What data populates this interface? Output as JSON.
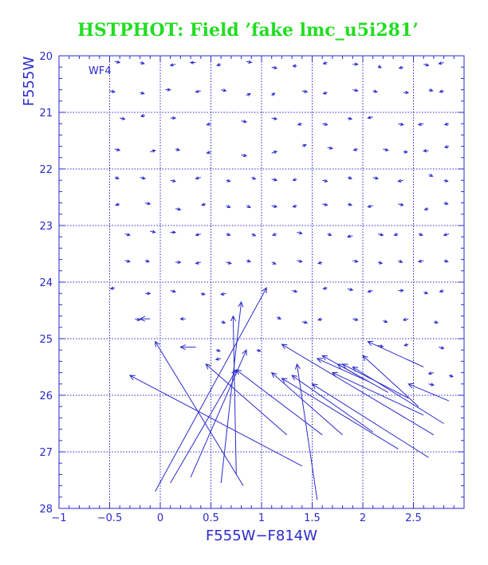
{
  "chart_data": {
    "type": "scatter",
    "title": "HSTPHOT: Field ’fake lmc_u5i281’",
    "panel_label": "WF4",
    "xlabel": "F555W−F814W",
    "ylabel": "F555W",
    "xlim": [
      -1,
      3.0
    ],
    "ylim": [
      28,
      20
    ],
    "x_ticks": [
      -1,
      -0.5,
      0,
      0.5,
      1,
      1.5,
      2,
      2.5
    ],
    "x_tick_labels": [
      "−1",
      "−0.5",
      "0",
      "0.5",
      "1",
      "1.5",
      "2",
      "2.5"
    ],
    "y_ticks": [
      20,
      21,
      22,
      23,
      24,
      25,
      26,
      27,
      28
    ],
    "y_tick_labels": [
      "20",
      "21",
      "22",
      "23",
      "24",
      "25",
      "26",
      "27",
      "28"
    ],
    "grid": true,
    "colors": {
      "title": "#22dd22",
      "axes": "#2a2acc",
      "data": "#2a2acc"
    },
    "short_vectors": [
      {
        "x": -0.45,
        "y": 20.1,
        "dx": 0.05,
        "dy": 0.02
      },
      {
        "x": -0.2,
        "y": 20.12,
        "dx": 0.04,
        "dy": 0.02
      },
      {
        "x": 0.15,
        "y": 20.15,
        "dx": -0.05,
        "dy": 0.02
      },
      {
        "x": 0.35,
        "y": 20.12,
        "dx": -0.05,
        "dy": 0.0
      },
      {
        "x": 0.6,
        "y": 20.15,
        "dx": -0.04,
        "dy": 0.02
      },
      {
        "x": 0.85,
        "y": 20.1,
        "dx": 0.05,
        "dy": 0.02
      },
      {
        "x": 1.1,
        "y": 20.2,
        "dx": 0.05,
        "dy": 0.02
      },
      {
        "x": 1.35,
        "y": 20.18,
        "dx": -0.04,
        "dy": 0.0
      },
      {
        "x": 1.65,
        "y": 20.12,
        "dx": -0.04,
        "dy": 0.02
      },
      {
        "x": 1.9,
        "y": 20.15,
        "dx": 0.05,
        "dy": 0.0
      },
      {
        "x": 2.15,
        "y": 20.18,
        "dx": 0.03,
        "dy": 0.03
      },
      {
        "x": 2.4,
        "y": 20.2,
        "dx": -0.04,
        "dy": 0.02
      },
      {
        "x": 2.6,
        "y": 20.15,
        "dx": 0.05,
        "dy": 0.02
      },
      {
        "x": 2.8,
        "y": 20.12,
        "dx": -0.05,
        "dy": 0.02
      },
      {
        "x": -0.5,
        "y": 20.62,
        "dx": 0.05,
        "dy": 0.02
      },
      {
        "x": -0.2,
        "y": 20.65,
        "dx": 0.04,
        "dy": 0.02
      },
      {
        "x": 0.05,
        "y": 20.6,
        "dx": 0.05,
        "dy": 0.0
      },
      {
        "x": 0.4,
        "y": 20.62,
        "dx": -0.05,
        "dy": 0.02
      },
      {
        "x": 0.6,
        "y": 20.6,
        "dx": 0.05,
        "dy": 0.02
      },
      {
        "x": 0.85,
        "y": 20.7,
        "dx": 0.04,
        "dy": -0.03
      },
      {
        "x": 1.1,
        "y": 20.7,
        "dx": 0.03,
        "dy": -0.04
      },
      {
        "x": 1.4,
        "y": 20.62,
        "dx": 0.05,
        "dy": 0.02
      },
      {
        "x": 1.65,
        "y": 20.65,
        "dx": -0.04,
        "dy": 0.02
      },
      {
        "x": 1.9,
        "y": 20.6,
        "dx": 0.05,
        "dy": 0.02
      },
      {
        "x": 2.1,
        "y": 20.62,
        "dx": 0.04,
        "dy": 0.02
      },
      {
        "x": 2.4,
        "y": 20.65,
        "dx": 0.05,
        "dy": 0.0
      },
      {
        "x": 2.65,
        "y": 20.6,
        "dx": 0.04,
        "dy": 0.02
      },
      {
        "x": 2.8,
        "y": 20.62,
        "dx": -0.04,
        "dy": 0.02
      },
      {
        "x": -0.4,
        "y": 21.1,
        "dx": 0.05,
        "dy": 0.02
      },
      {
        "x": -0.15,
        "y": 21.05,
        "dx": -0.04,
        "dy": 0.02
      },
      {
        "x": 0.1,
        "y": 21.1,
        "dx": 0.05,
        "dy": 0.0
      },
      {
        "x": 0.5,
        "y": 21.2,
        "dx": -0.04,
        "dy": 0.02
      },
      {
        "x": 0.8,
        "y": 21.15,
        "dx": 0.05,
        "dy": 0.02
      },
      {
        "x": 1.1,
        "y": 21.1,
        "dx": 0.05,
        "dy": 0.02
      },
      {
        "x": 1.4,
        "y": 21.2,
        "dx": -0.04,
        "dy": 0.02
      },
      {
        "x": 1.6,
        "y": 21.2,
        "dx": 0.05,
        "dy": 0.02
      },
      {
        "x": 1.85,
        "y": 21.1,
        "dx": 0.04,
        "dy": 0.02
      },
      {
        "x": 2.1,
        "y": 21.08,
        "dx": -0.05,
        "dy": 0.02
      },
      {
        "x": 2.35,
        "y": 21.2,
        "dx": 0.05,
        "dy": 0.02
      },
      {
        "x": 2.6,
        "y": 21.2,
        "dx": -0.05,
        "dy": 0.02
      },
      {
        "x": 2.85,
        "y": 21.2,
        "dx": -0.04,
        "dy": 0.02
      },
      {
        "x": -0.45,
        "y": 21.65,
        "dx": 0.05,
        "dy": 0.02
      },
      {
        "x": -0.1,
        "y": 21.7,
        "dx": 0.05,
        "dy": -0.03
      },
      {
        "x": 0.15,
        "y": 21.65,
        "dx": 0.04,
        "dy": 0.02
      },
      {
        "x": 0.5,
        "y": 21.7,
        "dx": -0.04,
        "dy": 0.02
      },
      {
        "x": 0.8,
        "y": 21.75,
        "dx": 0.05,
        "dy": 0.02
      },
      {
        "x": 1.1,
        "y": 21.72,
        "dx": 0.05,
        "dy": -0.03
      },
      {
        "x": 1.4,
        "y": 21.6,
        "dx": 0.04,
        "dy": -0.03
      },
      {
        "x": 1.65,
        "y": 21.62,
        "dx": 0.05,
        "dy": 0.02
      },
      {
        "x": 1.95,
        "y": 21.65,
        "dx": -0.04,
        "dy": 0.02
      },
      {
        "x": 2.2,
        "y": 21.65,
        "dx": 0.05,
        "dy": 0.02
      },
      {
        "x": 2.4,
        "y": 21.7,
        "dx": 0.04,
        "dy": 0.0
      },
      {
        "x": 2.65,
        "y": 21.68,
        "dx": -0.05,
        "dy": 0.0
      },
      {
        "x": 2.85,
        "y": 21.6,
        "dx": -0.04,
        "dy": 0.02
      },
      {
        "x": -0.45,
        "y": 22.15,
        "dx": 0.04,
        "dy": 0.02
      },
      {
        "x": -0.2,
        "y": 22.15,
        "dx": 0.05,
        "dy": 0.02
      },
      {
        "x": 0.1,
        "y": 22.2,
        "dx": 0.05,
        "dy": 0.02
      },
      {
        "x": 0.4,
        "y": 22.15,
        "dx": -0.05,
        "dy": 0.02
      },
      {
        "x": 0.65,
        "y": 22.2,
        "dx": 0.04,
        "dy": 0.02
      },
      {
        "x": 0.9,
        "y": 22.15,
        "dx": 0.04,
        "dy": 0.03
      },
      {
        "x": 1.1,
        "y": 22.18,
        "dx": 0.05,
        "dy": 0.02
      },
      {
        "x": 1.35,
        "y": 22.18,
        "dx": -0.04,
        "dy": 0.02
      },
      {
        "x": 1.6,
        "y": 22.2,
        "dx": 0.05,
        "dy": 0.02
      },
      {
        "x": 1.85,
        "y": 22.15,
        "dx": 0.04,
        "dy": 0.02
      },
      {
        "x": 2.1,
        "y": 22.15,
        "dx": 0.05,
        "dy": 0.02
      },
      {
        "x": 2.4,
        "y": 22.2,
        "dx": -0.05,
        "dy": 0.02
      },
      {
        "x": 2.65,
        "y": 22.1,
        "dx": 0.04,
        "dy": 0.03
      },
      {
        "x": 2.8,
        "y": 22.2,
        "dx": 0.04,
        "dy": 0.02
      },
      {
        "x": -0.4,
        "y": 22.62,
        "dx": -0.04,
        "dy": 0.02
      },
      {
        "x": -0.15,
        "y": 22.6,
        "dx": 0.05,
        "dy": 0.02
      },
      {
        "x": 0.15,
        "y": 22.7,
        "dx": 0.05,
        "dy": 0.02
      },
      {
        "x": 0.45,
        "y": 22.62,
        "dx": -0.04,
        "dy": 0.02
      },
      {
        "x": 0.65,
        "y": 22.65,
        "dx": 0.04,
        "dy": 0.03
      },
      {
        "x": 0.85,
        "y": 22.65,
        "dx": 0.04,
        "dy": 0.03
      },
      {
        "x": 1.1,
        "y": 22.65,
        "dx": 0.05,
        "dy": 0.02
      },
      {
        "x": 1.35,
        "y": 22.65,
        "dx": -0.04,
        "dy": 0.02
      },
      {
        "x": 1.6,
        "y": 22.62,
        "dx": 0.05,
        "dy": 0.02
      },
      {
        "x": 1.85,
        "y": 22.62,
        "dx": 0.04,
        "dy": 0.02
      },
      {
        "x": 2.1,
        "y": 22.65,
        "dx": -0.05,
        "dy": 0.02
      },
      {
        "x": 2.35,
        "y": 22.62,
        "dx": 0.05,
        "dy": 0.02
      },
      {
        "x": 2.65,
        "y": 22.7,
        "dx": -0.04,
        "dy": 0.02
      },
      {
        "x": 2.8,
        "y": 22.6,
        "dx": 0.04,
        "dy": 0.02
      },
      {
        "x": -0.35,
        "y": 23.15,
        "dx": 0.05,
        "dy": 0.02
      },
      {
        "x": -0.1,
        "y": 23.1,
        "dx": 0.05,
        "dy": 0.02
      },
      {
        "x": 0.1,
        "y": 23.12,
        "dx": 0.05,
        "dy": 0.0
      },
      {
        "x": 0.4,
        "y": 23.15,
        "dx": -0.05,
        "dy": 0.02
      },
      {
        "x": 0.65,
        "y": 23.15,
        "dx": 0.04,
        "dy": 0.02
      },
      {
        "x": 0.9,
        "y": 23.15,
        "dx": 0.04,
        "dy": 0.03
      },
      {
        "x": 1.15,
        "y": 23.15,
        "dx": -0.04,
        "dy": 0.02
      },
      {
        "x": 1.35,
        "y": 23.12,
        "dx": 0.05,
        "dy": 0.02
      },
      {
        "x": 1.65,
        "y": 23.15,
        "dx": 0.04,
        "dy": 0.02
      },
      {
        "x": 1.9,
        "y": 23.18,
        "dx": -0.05,
        "dy": 0.02
      },
      {
        "x": 2.15,
        "y": 23.15,
        "dx": 0.05,
        "dy": 0.02
      },
      {
        "x": 2.35,
        "y": 23.15,
        "dx": -0.04,
        "dy": 0.02
      },
      {
        "x": 2.55,
        "y": 23.15,
        "dx": 0.04,
        "dy": 0.02
      },
      {
        "x": 2.85,
        "y": 23.15,
        "dx": -0.05,
        "dy": 0.02
      },
      {
        "x": -0.35,
        "y": 23.62,
        "dx": 0.05,
        "dy": 0.02
      },
      {
        "x": -0.15,
        "y": 23.62,
        "dx": 0.04,
        "dy": 0.02
      },
      {
        "x": 0.15,
        "y": 23.65,
        "dx": 0.05,
        "dy": 0.0
      },
      {
        "x": 0.4,
        "y": 23.65,
        "dx": -0.05,
        "dy": 0.02
      },
      {
        "x": 0.65,
        "y": 23.65,
        "dx": 0.05,
        "dy": 0.02
      },
      {
        "x": 0.85,
        "y": 23.62,
        "dx": 0.04,
        "dy": 0.02
      },
      {
        "x": 1.1,
        "y": 23.65,
        "dx": 0.04,
        "dy": 0.03
      },
      {
        "x": 1.35,
        "y": 23.62,
        "dx": 0.05,
        "dy": 0.02
      },
      {
        "x": 1.6,
        "y": 23.65,
        "dx": -0.04,
        "dy": 0.02
      },
      {
        "x": 1.9,
        "y": 23.62,
        "dx": 0.05,
        "dy": 0.02
      },
      {
        "x": 2.15,
        "y": 23.65,
        "dx": 0.04,
        "dy": 0.02
      },
      {
        "x": 2.35,
        "y": 23.62,
        "dx": 0.04,
        "dy": 0.03
      },
      {
        "x": 2.6,
        "y": 23.62,
        "dx": -0.05,
        "dy": 0.02
      },
      {
        "x": 2.8,
        "y": 23.62,
        "dx": 0.04,
        "dy": 0.02
      },
      {
        "x": -0.45,
        "y": 24.1,
        "dx": -0.04,
        "dy": 0.02
      },
      {
        "x": -0.15,
        "y": 24.2,
        "dx": 0.05,
        "dy": 0.0
      },
      {
        "x": 0.1,
        "y": 24.15,
        "dx": 0.05,
        "dy": 0.02
      },
      {
        "x": 0.4,
        "y": 24.2,
        "dx": 0.04,
        "dy": 0.02
      },
      {
        "x": 0.65,
        "y": 24.2,
        "dx": -0.05,
        "dy": 0.02
      },
      {
        "x": 1.3,
        "y": 24.15,
        "dx": 0.05,
        "dy": 0.02
      },
      {
        "x": 1.65,
        "y": 24.1,
        "dx": -0.04,
        "dy": 0.02
      },
      {
        "x": 1.85,
        "y": 24.12,
        "dx": 0.05,
        "dy": 0.02
      },
      {
        "x": 2.1,
        "y": 24.15,
        "dx": -0.05,
        "dy": 0.02
      },
      {
        "x": 2.35,
        "y": 24.15,
        "dx": 0.05,
        "dy": 0.0
      },
      {
        "x": 2.6,
        "y": 24.18,
        "dx": 0.04,
        "dy": 0.02
      },
      {
        "x": 2.8,
        "y": 24.15,
        "dx": -0.04,
        "dy": 0.02
      },
      {
        "x": -0.25,
        "y": 24.65,
        "dx": 0.05,
        "dy": 0.02
      },
      {
        "x": 0.25,
        "y": 24.65,
        "dx": -0.05,
        "dy": 0.0
      },
      {
        "x": 0.6,
        "y": 24.7,
        "dx": 0.04,
        "dy": 0.02
      },
      {
        "x": 1.15,
        "y": 24.62,
        "dx": 0.04,
        "dy": 0.03
      },
      {
        "x": 1.4,
        "y": 24.7,
        "dx": 0.05,
        "dy": 0.02
      },
      {
        "x": 1.6,
        "y": 24.65,
        "dx": -0.04,
        "dy": 0.02
      },
      {
        "x": 1.9,
        "y": 24.65,
        "dx": 0.05,
        "dy": 0.02
      },
      {
        "x": 2.2,
        "y": 24.68,
        "dx": 0.04,
        "dy": 0.03
      },
      {
        "x": 2.45,
        "y": 24.65,
        "dx": -0.05,
        "dy": 0.02
      },
      {
        "x": 2.7,
        "y": 24.7,
        "dx": 0.04,
        "dy": 0.02
      },
      {
        "x": 2.15,
        "y": 25.12,
        "dx": 0.05,
        "dy": 0.02
      },
      {
        "x": 2.45,
        "y": 25.1,
        "dx": -0.04,
        "dy": 0.02
      },
      {
        "x": 2.75,
        "y": 25.15,
        "dx": 0.05,
        "dy": 0.02
      },
      {
        "x": 2.7,
        "y": 25.6,
        "dx": -0.05,
        "dy": 0.02
      },
      {
        "x": 2.85,
        "y": 25.65,
        "dx": 0.04,
        "dy": 0.02
      },
      {
        "x": 2.65,
        "y": 25.8,
        "dx": 0.05,
        "dy": 0.02
      },
      {
        "x": 0.55,
        "y": 25.2,
        "dx": 0.04,
        "dy": 0.02
      },
      {
        "x": 0.6,
        "y": 25.35,
        "dx": -0.05,
        "dy": 0.02
      },
      {
        "x": 0.95,
        "y": 25.2,
        "dx": 0.04,
        "dy": 0.02
      }
    ],
    "long_vectors": [
      {
        "x1": 1.4,
        "y1": 27.25,
        "x2": -0.3,
        "y2": 25.65
      },
      {
        "x1": -0.05,
        "y1": 27.7,
        "x2": 1.05,
        "y2": 24.1
      },
      {
        "x1": 0.1,
        "y1": 27.55,
        "x2": 0.75,
        "y2": 25.55
      },
      {
        "x1": 0.3,
        "y1": 27.45,
        "x2": 0.85,
        "y2": 25.2
      },
      {
        "x1": 0.6,
        "y1": 27.55,
        "x2": 0.8,
        "y2": 24.35
      },
      {
        "x1": 0.75,
        "y1": 27.4,
        "x2": 0.72,
        "y2": 24.6
      },
      {
        "x1": 0.82,
        "y1": 27.6,
        "x2": -0.05,
        "y2": 25.05
      },
      {
        "x1": 1.25,
        "y1": 26.7,
        "x2": 0.45,
        "y2": 25.45
      },
      {
        "x1": 1.6,
        "y1": 26.7,
        "x2": 0.75,
        "y2": 25.55
      },
      {
        "x1": 1.55,
        "y1": 27.85,
        "x2": 1.35,
        "y2": 25.45
      },
      {
        "x1": 1.8,
        "y1": 26.7,
        "x2": 1.1,
        "y2": 25.6
      },
      {
        "x1": 2.1,
        "y1": 26.65,
        "x2": 1.3,
        "y2": 25.65
      },
      {
        "x1": 2.35,
        "y1": 26.95,
        "x2": 1.2,
        "y2": 25.7
      },
      {
        "x1": 2.65,
        "y1": 27.1,
        "x2": 1.5,
        "y2": 25.8
      },
      {
        "x1": 2.7,
        "y1": 26.7,
        "x2": 1.2,
        "y2": 25.1
      },
      {
        "x1": 2.8,
        "y1": 26.5,
        "x2": 1.9,
        "y2": 25.5
      },
      {
        "x1": 2.6,
        "y1": 26.35,
        "x2": 1.7,
        "y2": 25.6
      },
      {
        "x1": 2.45,
        "y1": 26.05,
        "x2": 1.8,
        "y2": 25.45
      },
      {
        "x1": 2.55,
        "y1": 26.2,
        "x2": 2.0,
        "y2": 25.3
      },
      {
        "x1": 2.25,
        "y1": 25.95,
        "x2": 1.6,
        "y2": 25.3
      },
      {
        "x1": 2.85,
        "y1": 26.1,
        "x2": 2.45,
        "y2": 25.8
      },
      {
        "x1": 2.05,
        "y1": 25.75,
        "x2": 1.55,
        "y2": 25.35
      },
      {
        "x1": 2.6,
        "y1": 25.5,
        "x2": 2.05,
        "y2": 25.05
      },
      {
        "x1": 1.95,
        "y1": 25.65,
        "x2": 1.75,
        "y2": 25.45
      },
      {
        "x1": 0.35,
        "y1": 25.15,
        "x2": 0.2,
        "y2": 25.15
      },
      {
        "x1": -0.1,
        "y1": 24.65,
        "x2": -0.2,
        "y2": 24.65
      }
    ]
  }
}
